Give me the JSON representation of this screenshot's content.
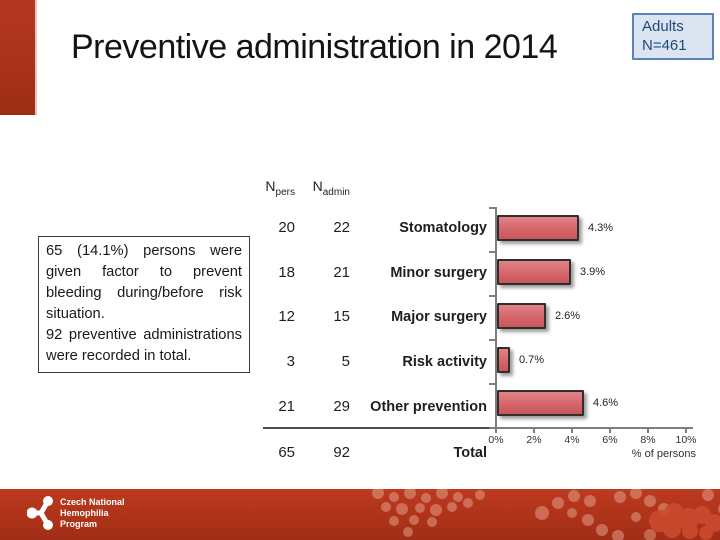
{
  "slide": {
    "title": "Preventive administration in 2014",
    "badge": {
      "line1": "Adults",
      "line2": "N=461"
    },
    "note": {
      "p1": "65 (14.1%) persons were given factor to prevent bleeding during/before risk situation.",
      "p2": "92 preventive adminis­trations were recorded in total."
    }
  },
  "table": {
    "headers": {
      "npers_base": "N",
      "npers_sub": "pers",
      "nadmin_base": "N",
      "nadmin_sub": "admin"
    },
    "rows": [
      {
        "npers": "20",
        "nadmin": "22",
        "label": "Stomatology"
      },
      {
        "npers": "18",
        "nadmin": "21",
        "label": "Minor surgery"
      },
      {
        "npers": "12",
        "nadmin": "15",
        "label": "Major surgery"
      },
      {
        "npers": "3",
        "nadmin": "5",
        "label": "Risk activity"
      },
      {
        "npers": "21",
        "nadmin": "29",
        "label": "Other prevention"
      }
    ],
    "total": {
      "npers": "65",
      "nadmin": "92",
      "label": "Total"
    }
  },
  "chart_data": {
    "type": "bar",
    "orientation": "horizontal",
    "categories": [
      "Stomatology",
      "Minor surgery",
      "Major surgery",
      "Risk activity",
      "Other prevention"
    ],
    "values": [
      4.3,
      3.9,
      2.6,
      0.7,
      4.6
    ],
    "value_labels": [
      "4.3%",
      "3.9%",
      "2.6%",
      "0.7%",
      "4.6%"
    ],
    "x_ticks": [
      "0%",
      "2%",
      "4%",
      "6%",
      "8%",
      "10%"
    ],
    "xlim": [
      0,
      10
    ],
    "xlabel": "% of persons",
    "grid": false,
    "legend": false,
    "bar_color": "#d5666a",
    "bar_border": "#2e2e2e"
  },
  "footer": {
    "org_line1": "Czech National",
    "org_line2": "Hemophilia",
    "org_line3": "Program"
  }
}
